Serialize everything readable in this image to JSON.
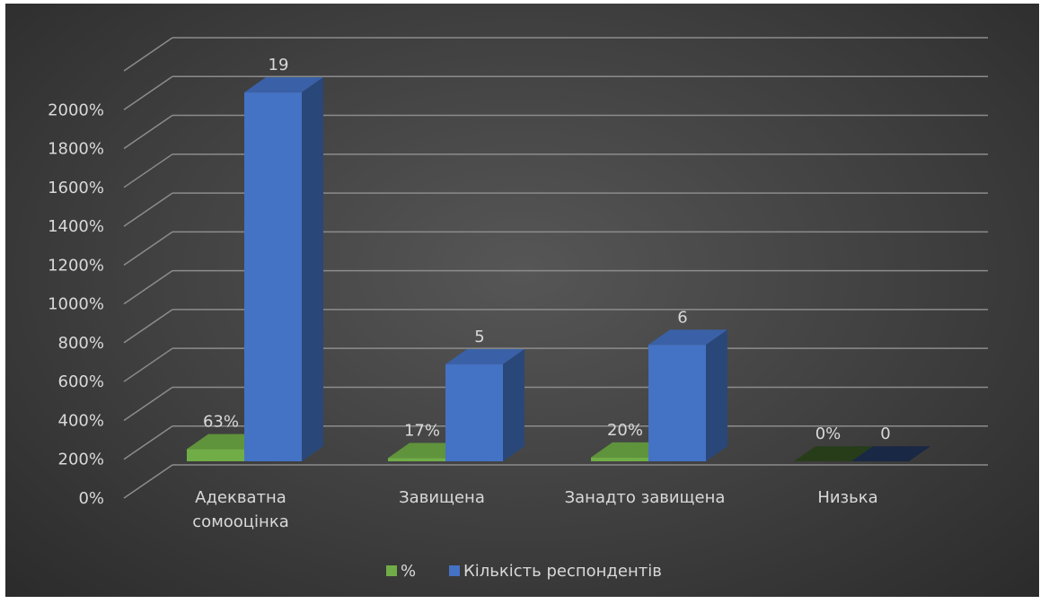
{
  "chart_data": {
    "type": "bar",
    "categories": [
      [
        "Адекватна",
        "сомооцінка"
      ],
      [
        "Завищена"
      ],
      [
        "Занадто завищена"
      ],
      [
        "Низька"
      ]
    ],
    "series": [
      {
        "name": "%",
        "values": [
          0.63,
          0.17,
          0.2,
          0.0
        ],
        "data_labels": [
          "63%",
          "17%",
          "20%",
          "0%"
        ],
        "color": "#70ad47"
      },
      {
        "name": "Кількість респондентів",
        "values": [
          19,
          5,
          6,
          0
        ],
        "data_labels": [
          "19",
          "5",
          "6",
          "0"
        ],
        "color": "#4472c4"
      }
    ],
    "y_ticks": [
      "0%",
      "200%",
      "400%",
      "600%",
      "800%",
      "1000%",
      "1200%",
      "1400%",
      "1600%",
      "1800%",
      "2000%"
    ],
    "ylim": [
      0,
      22
    ],
    "grid": true,
    "legend_position": "bottom",
    "style": "3d-clustered-column"
  },
  "colors": {
    "background": "#454545",
    "gridline": "#8c8c8c",
    "text": "#d9d9d9"
  }
}
